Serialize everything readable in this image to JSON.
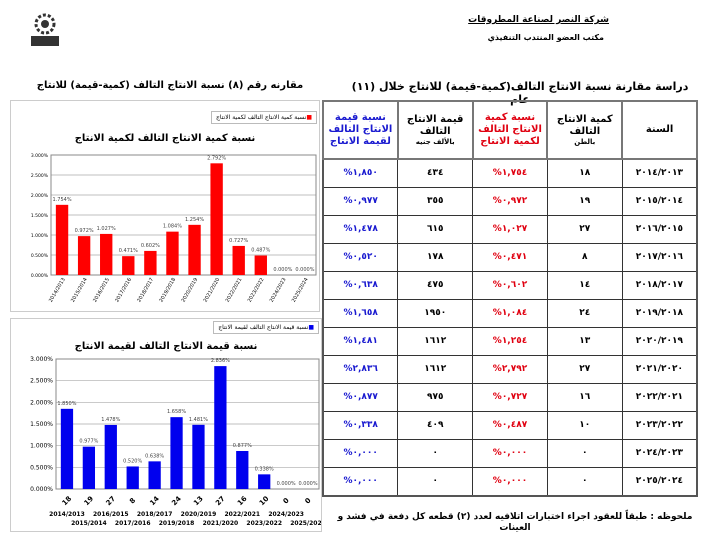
{
  "header": {
    "company": "شركة النصر لصناعة المطروقات",
    "office": "مكتب العضو المنتدب التنفيذي"
  },
  "table_title": "دراسة مقارنة نسبة الانتاج التالف(كمية-قيمة) للانتاج خلال (١١) عام",
  "chart_section_title": "مقارنه رقم (٨) نسبة الانتاج التالف (كمية-قيمة) للانتاج",
  "table": {
    "headers": {
      "year": "السنة",
      "qty": "كمية الانتاج التالف",
      "qty_unit": "بالطن",
      "qty_pct": "نسبة كمية الانتاج التالف لكمية الانتاج",
      "value": "قيمة الانتاج التالف",
      "value_unit": "بالألف جنيه",
      "value_pct": "نسبة قيمة الانتاج التالف لقيمة الانتاج"
    },
    "rows": [
      {
        "year": "٢٠١٤/٢٠١٣",
        "qty": "١٨",
        "qty_pct": "%١,٧٥٤",
        "value": "٤٣٤",
        "value_pct": "%١,٨٥٠"
      },
      {
        "year": "٢٠١٥/٢٠١٤",
        "qty": "١٩",
        "qty_pct": "%٠,٩٧٢",
        "value": "٣٥٥",
        "value_pct": "%٠,٩٧٧"
      },
      {
        "year": "٢٠١٦/٢٠١٥",
        "qty": "٢٧",
        "qty_pct": "%١,٠٢٧",
        "value": "٦١٥",
        "value_pct": "%١,٤٧٨"
      },
      {
        "year": "٢٠١٧/٢٠١٦",
        "qty": "٨",
        "qty_pct": "%٠,٤٧١",
        "value": "١٧٨",
        "value_pct": "%٠,٥٢٠"
      },
      {
        "year": "٢٠١٨/٢٠١٧",
        "qty": "١٤",
        "qty_pct": "%٠,٦٠٢",
        "value": "٤٧٥",
        "value_pct": "%٠,٦٣٨"
      },
      {
        "year": "٢٠١٩/٢٠١٨",
        "qty": "٢٤",
        "qty_pct": "%١,٠٨٤",
        "value": "١٩٥٠",
        "value_pct": "%١,٦٥٨"
      },
      {
        "year": "٢٠٢٠/٢٠١٩",
        "qty": "١٣",
        "qty_pct": "%١,٢٥٤",
        "value": "١٦١٢",
        "value_pct": "%١,٤٨١"
      },
      {
        "year": "٢٠٢١/٢٠٢٠",
        "qty": "٢٧",
        "qty_pct": "%٢,٧٩٢",
        "value": "١٦١٢",
        "value_pct": "%٢,٨٣٦"
      },
      {
        "year": "٢٠٢٢/٢٠٢١",
        "qty": "١٦",
        "qty_pct": "%٠,٧٢٧",
        "value": "٩٧٥",
        "value_pct": "%٠,٨٧٧"
      },
      {
        "year": "٢٠٢٣/٢٠٢٢",
        "qty": "١٠",
        "qty_pct": "%٠,٤٨٧",
        "value": "٤٠٩",
        "value_pct": "%٠,٣٣٨"
      },
      {
        "year": "٢٠٢٤/٢٠٢٣",
        "qty": "٠",
        "qty_pct": "%٠,٠٠٠",
        "value": "٠",
        "value_pct": "%٠,٠٠٠"
      },
      {
        "year": "٢٠٢٥/٢٠٢٤",
        "qty": "٠",
        "qty_pct": "%٠,٠٠٠",
        "value": "٠",
        "value_pct": "%٠,٠٠٠"
      }
    ]
  },
  "note": "ملحوظه : طبقاً للعقود اجراء اختبارات اتلافيه لعدد (٢) قطعه كل دفعة في فشد و العينات",
  "chart_data": [
    {
      "type": "bar",
      "title": "نسبة كمية الانتاج التالف لكمية الانتاج",
      "legend": "نسبة كمية الانتاج التالف لكمية الانتاج",
      "color": "#ff0000",
      "categories": [
        "2014/2013",
        "2015/2014",
        "2016/2015",
        "2017/2016",
        "2018/2017",
        "2019/2018",
        "2020/2019",
        "2021/2020",
        "2022/2021",
        "2023/2022",
        "2024/2023",
        "2025/2024"
      ],
      "values": [
        1.754,
        0.972,
        1.027,
        0.471,
        0.602,
        1.084,
        1.254,
        2.792,
        0.727,
        0.487,
        0,
        0
      ],
      "labels": [
        "1.754%",
        "0.972%",
        "1.027%",
        "0.471%",
        "0.602%",
        "1.084%",
        "1.254%",
        "2.792%",
        "0.727%",
        "0.487%",
        "0.000%",
        "0.000%"
      ],
      "yticks": [
        "0.000%",
        "0.500%",
        "1.000%",
        "1.500%",
        "2.000%",
        "2.500%",
        "3.000%"
      ],
      "ylim": [
        0,
        3
      ]
    },
    {
      "type": "bar",
      "title": "نسبة قيمة الانتاج التالف لقيمة الانتاج",
      "legend": "نسبة قيمة الانتاج التالف لقيمة الانتاج",
      "color": "#0000ee",
      "categories": [
        "2014/2013",
        "2015/2014",
        "2016/2015",
        "2017/2016",
        "2018/2017",
        "2019/2018",
        "2020/2019",
        "2021/2020",
        "2022/2021",
        "2023/2022",
        "2024/2023",
        "2025/2024"
      ],
      "qty_labels": [
        "18",
        "19",
        "27",
        "8",
        "14",
        "24",
        "13",
        "27",
        "16",
        "10",
        "0",
        "0"
      ],
      "values": [
        1.85,
        0.977,
        1.478,
        0.52,
        0.638,
        1.658,
        1.481,
        2.836,
        0.877,
        0.338,
        0,
        0
      ],
      "labels": [
        "1.850%",
        "0.977%",
        "1.478%",
        "0.520%",
        "0.638%",
        "1.658%",
        "1.481%",
        "2.836%",
        "0.877%",
        "0.338%",
        "0.000%",
        "0.000%"
      ],
      "yticks": [
        "0.000%",
        "0.500%",
        "1.000%",
        "1.500%",
        "2.000%",
        "2.500%",
        "3.000%"
      ],
      "ylim": [
        0,
        3
      ]
    }
  ]
}
